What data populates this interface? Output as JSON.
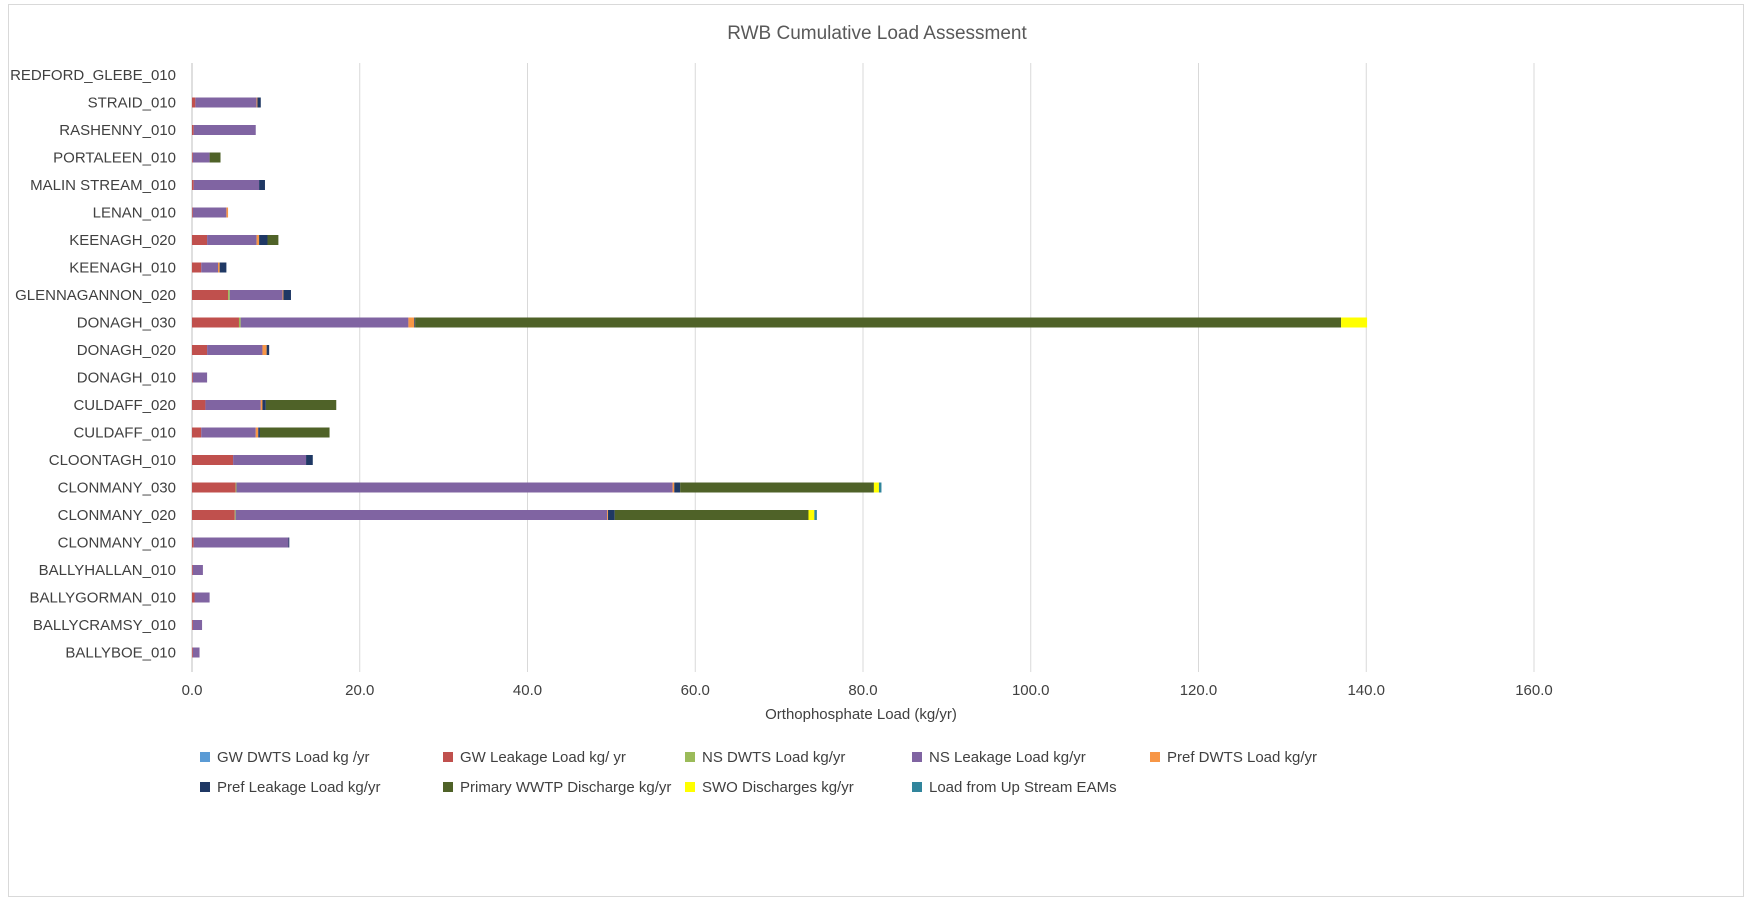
{
  "chart_data": {
    "type": "bar",
    "orientation": "horizontal",
    "stacked": true,
    "title": "RWB Cumulative Load Assessment",
    "xlabel": "Orthophosphate Load (kg/yr)",
    "ylabel": "",
    "xlim": [
      0,
      160
    ],
    "xticks": [
      "0.0",
      "20.0",
      "40.0",
      "60.0",
      "80.0",
      "100.0",
      "120.0",
      "140.0",
      "160.0"
    ],
    "grid": "vertical",
    "legend_position": "bottom",
    "categories": [
      "REDFORD_GLEBE_010",
      "STRAID_010",
      "RASHENNY_010",
      "PORTALEEN_010",
      "MALIN STREAM_010",
      "LENAN_010",
      "KEENAGH_020",
      "KEENAGH_010",
      "GLENNAGANNON_020",
      "DONAGH_030",
      "DONAGH_020",
      "DONAGH_010",
      "CULDAFF_020",
      "CULDAFF_010",
      "CLOONTAGH_010",
      "CLONMANY_030",
      "CLONMANY_020",
      "CLONMANY_010",
      "BALLYHALLAN_010",
      "BALLYGORMAN_010",
      "BALLYCRAMSY_010",
      "BALLYBOE_010"
    ],
    "series": [
      {
        "name": "GW DWTS Load kg /yr",
        "color": "#5b9bd5",
        "values": [
          0,
          0,
          0,
          0,
          0,
          0,
          0,
          0,
          0,
          0,
          0,
          0,
          0,
          0,
          0,
          0,
          0,
          0,
          0,
          0,
          0,
          0
        ]
      },
      {
        "name": "GW Leakage Load kg/ yr",
        "color": "#c0504d",
        "values": [
          0,
          0.4,
          0.2,
          0.1,
          0.2,
          0.1,
          1.8,
          1.1,
          4.3,
          5.6,
          1.8,
          0.1,
          1.6,
          1.1,
          4.9,
          5.2,
          5.1,
          0.2,
          0.1,
          0.3,
          0.1,
          0.1
        ]
      },
      {
        "name": "NS DWTS Load kg/yr",
        "color": "#9bbb59",
        "values": [
          0,
          0,
          0,
          0,
          0,
          0,
          0,
          0,
          0.2,
          0.2,
          0,
          0,
          0,
          0,
          0,
          0.1,
          0.1,
          0,
          0,
          0,
          0,
          0
        ]
      },
      {
        "name": "NS Leakage Load kg/yr",
        "color": "#8064a2",
        "values": [
          0,
          7.3,
          7.4,
          2.0,
          7.8,
          4.0,
          5.9,
          2.0,
          6.3,
          20.0,
          6.6,
          1.7,
          6.6,
          6.5,
          8.7,
          52.0,
          44.3,
          11.3,
          1.2,
          1.8,
          1.1,
          0.8
        ]
      },
      {
        "name": "Pref DWTS Load kg/yr",
        "color": "#f79646",
        "values": [
          0,
          0.1,
          0,
          0,
          0,
          0.2,
          0.3,
          0.2,
          0.1,
          0.7,
          0.5,
          0,
          0.2,
          0.3,
          0,
          0.2,
          0.1,
          0,
          0,
          0,
          0,
          0
        ]
      },
      {
        "name": "Pref Leakage Load kg/yr",
        "color": "#1f3864",
        "values": [
          0,
          0.4,
          0,
          0,
          0.7,
          0,
          1.0,
          0.8,
          0.9,
          0.1,
          0.3,
          0,
          0.4,
          0.2,
          0.8,
          0.7,
          0.8,
          0.1,
          0,
          0,
          0,
          0
        ]
      },
      {
        "name": "Primary WWTP Discharge kg/yr",
        "color": "#4f6228",
        "values": [
          0,
          0,
          0,
          1.3,
          0,
          0,
          1.3,
          0,
          0,
          110.4,
          0,
          0,
          8.4,
          8.3,
          0,
          23.1,
          23.1,
          0,
          0,
          0,
          0,
          0
        ]
      },
      {
        "name": "SWO Discharges  kg/yr",
        "color": "#ffff00",
        "values": [
          0,
          0,
          0,
          0,
          0,
          0,
          0,
          0,
          0,
          3.1,
          0,
          0,
          0,
          0,
          0,
          0.6,
          0.7,
          0,
          0,
          0,
          0,
          0
        ]
      },
      {
        "name": "Load from Up Stream EAMs",
        "color": "#31859c",
        "values": [
          0,
          0,
          0,
          0,
          0,
          0,
          0,
          0,
          0,
          0,
          0,
          0,
          0,
          0,
          0,
          0.3,
          0.3,
          0,
          0,
          0,
          0,
          0
        ]
      }
    ]
  }
}
